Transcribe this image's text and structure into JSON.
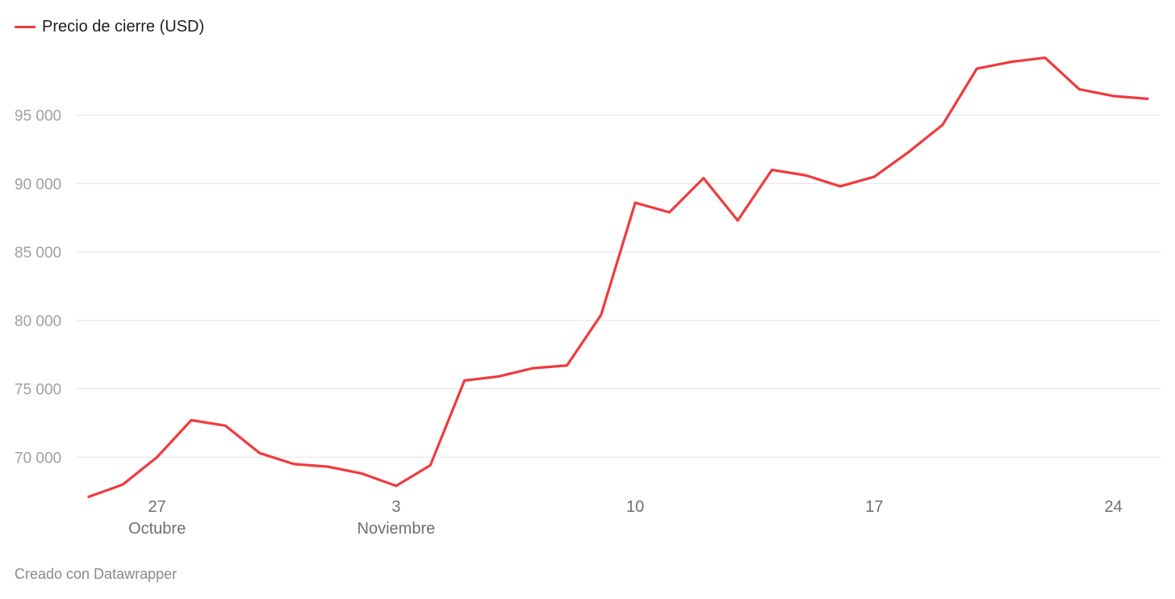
{
  "legend": {
    "label": "Precio de cierre (USD)",
    "color": "#f03a3e"
  },
  "footer": {
    "credit": "Creado con Datawrapper"
  },
  "chart_data": {
    "type": "line",
    "title": "",
    "xlabel": "",
    "ylabel": "",
    "x": [
      "2024-10-25",
      "2024-10-26",
      "2024-10-27",
      "2024-10-28",
      "2024-10-29",
      "2024-10-30",
      "2024-10-31",
      "2024-11-01",
      "2024-11-02",
      "2024-11-03",
      "2024-11-04",
      "2024-11-05",
      "2024-11-06",
      "2024-11-07",
      "2024-11-08",
      "2024-11-09",
      "2024-11-10",
      "2024-11-11",
      "2024-11-12",
      "2024-11-13",
      "2024-11-14",
      "2024-11-15",
      "2024-11-16",
      "2024-11-17",
      "2024-11-18",
      "2024-11-19",
      "2024-11-20",
      "2024-11-21",
      "2024-11-22",
      "2024-11-23",
      "2024-11-24",
      "2024-11-25"
    ],
    "series": [
      {
        "name": "Precio de cierre (USD)",
        "color": "#f03a3e",
        "values": [
          67100,
          68000,
          70000,
          72700,
          72300,
          70300,
          69500,
          69300,
          68800,
          67900,
          69400,
          75600,
          75900,
          76500,
          76700,
          80400,
          88600,
          87900,
          90400,
          87300,
          91000,
          90600,
          89800,
          90500,
          92300,
          94300,
          98400,
          98900,
          99200,
          96900,
          96400,
          96200
        ]
      }
    ],
    "ylim": [
      67300,
      100000
    ],
    "yticks": [
      70000,
      75000,
      80000,
      85000,
      90000,
      95000
    ],
    "ytick_labels": [
      "70 000",
      "75 000",
      "80 000",
      "85 000",
      "90 000",
      "95 000"
    ],
    "xticks": [
      {
        "date": "2024-10-27",
        "day": "27",
        "month": "Octubre"
      },
      {
        "date": "2024-11-03",
        "day": "3",
        "month": "Noviembre"
      },
      {
        "date": "2024-11-10",
        "day": "10",
        "month": ""
      },
      {
        "date": "2024-11-17",
        "day": "17",
        "month": ""
      },
      {
        "date": "2024-11-24",
        "day": "24",
        "month": ""
      }
    ],
    "grid": true,
    "legend_position": "top-left"
  }
}
